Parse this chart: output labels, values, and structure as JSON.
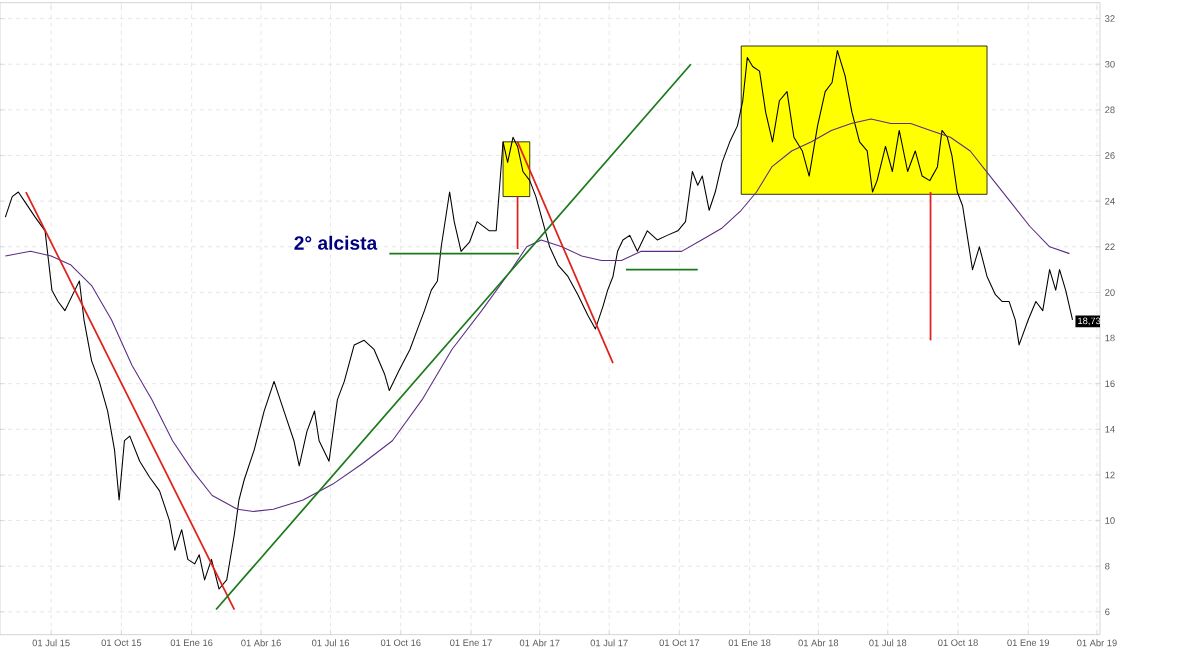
{
  "chart_data": {
    "type": "line",
    "xlim": [
      "2015-04-25",
      "2019-04-05"
    ],
    "ylim": [
      5.0,
      32.7
    ],
    "xticks": [
      {
        "value": "2015-07-01",
        "label": "01 Jul 15"
      },
      {
        "value": "2015-10-01",
        "label": "01 Oct 15"
      },
      {
        "value": "2016-01-01",
        "label": "01 Ene 16"
      },
      {
        "value": "2016-04-01",
        "label": "01 Abr 16"
      },
      {
        "value": "2016-07-01",
        "label": "01 Jul 16"
      },
      {
        "value": "2016-10-01",
        "label": "01 Oct 16"
      },
      {
        "value": "2017-01-01",
        "label": "01 Ene 17"
      },
      {
        "value": "2017-04-01",
        "label": "01 Abr 17"
      },
      {
        "value": "2017-07-01",
        "label": "01 Jul 17"
      },
      {
        "value": "2017-10-01",
        "label": "01 Oct 17"
      },
      {
        "value": "2018-01-01",
        "label": "01 Ene 18"
      },
      {
        "value": "2018-04-01",
        "label": "01 Abr 18"
      },
      {
        "value": "2018-07-01",
        "label": "01 Jul 18"
      },
      {
        "value": "2018-10-01",
        "label": "01 Oct 18"
      },
      {
        "value": "2019-01-01",
        "label": "01 Ene 19"
      },
      {
        "value": "2019-04-01",
        "label": "01 Abr 19"
      }
    ],
    "yticks": [
      6,
      8,
      10,
      12,
      14,
      16,
      18,
      20,
      22,
      24,
      26,
      28,
      30,
      32
    ],
    "grid": true,
    "annotations": [
      "2° alcista",
      {
        "text": "18,73",
        "x": "2019-02-28",
        "y": 18.73
      }
    ],
    "series": [
      {
        "type": "area",
        "color": "#ffff00",
        "x": [
          "2017-02-12",
          "2017-02-12",
          "2017-03-19",
          "2017-03-19"
        ],
        "values": [
          24.2,
          26.6,
          26.6,
          24.2
        ]
      },
      {
        "type": "area",
        "color": "#ffff00",
        "x": [
          "2017-12-21",
          "2017-12-21",
          "2018-11-08",
          "2018-11-08"
        ],
        "values": [
          24.3,
          30.8,
          30.8,
          24.3
        ]
      },
      {
        "color": "#000000",
        "x": [
          "2015-05-02",
          "2015-05-11",
          "2015-05-19",
          "2015-05-27",
          "2015-06-10",
          "2015-06-23",
          "2015-07-02",
          "2015-07-10",
          "2015-07-19",
          "2015-08-01",
          "2015-08-07",
          "2015-08-13",
          "2015-08-23",
          "2015-09-02",
          "2015-09-13",
          "2015-09-22",
          "2015-09-28",
          "2015-10-05",
          "2015-10-12",
          "2015-10-25",
          "2015-11-07",
          "2015-11-20",
          "2015-12-03",
          "2015-12-10",
          "2015-12-19",
          "2015-12-27",
          "2016-01-05",
          "2016-01-11",
          "2016-01-18",
          "2016-01-27",
          "2016-02-06",
          "2016-02-16",
          "2016-02-26",
          "2016-03-03",
          "2016-03-10",
          "2016-03-23",
          "2016-04-05",
          "2016-04-18",
          "2016-05-01",
          "2016-05-14",
          "2016-05-21",
          "2016-05-31",
          "2016-06-10",
          "2016-06-16",
          "2016-06-29",
          "2016-07-10",
          "2016-07-19",
          "2016-08-01",
          "2016-08-14",
          "2016-08-27",
          "2016-09-10",
          "2016-09-16",
          "2016-09-29",
          "2016-10-13",
          "2016-10-23",
          "2016-11-01",
          "2016-11-10",
          "2016-11-18",
          "2016-11-23",
          "2016-12-04",
          "2016-12-10",
          "2016-12-19",
          "2016-12-30",
          "2017-01-09",
          "2017-01-25",
          "2017-02-03",
          "2017-02-12",
          "2017-02-18",
          "2017-02-25",
          "2017-03-03",
          "2017-03-10",
          "2017-03-19",
          "2017-03-27",
          "2017-04-05",
          "2017-04-14",
          "2017-04-25",
          "2017-05-08",
          "2017-05-21",
          "2017-06-03",
          "2017-06-13",
          "2017-06-23",
          "2017-06-29",
          "2017-07-06",
          "2017-07-12",
          "2017-07-19",
          "2017-07-28",
          "2017-08-07",
          "2017-08-20",
          "2017-09-02",
          "2017-09-15",
          "2017-09-29",
          "2017-10-09",
          "2017-10-18",
          "2017-10-25",
          "2017-10-31",
          "2017-11-09",
          "2017-11-17",
          "2017-11-26",
          "2017-12-06",
          "2017-12-16",
          "2017-12-23",
          "2017-12-29",
          "2018-01-05",
          "2018-01-14",
          "2018-01-22",
          "2018-01-31",
          "2018-02-09",
          "2018-02-19",
          "2018-02-28",
          "2018-03-11",
          "2018-03-20",
          "2018-03-31",
          "2018-04-10",
          "2018-04-19",
          "2018-04-26",
          "2018-05-06",
          "2018-05-15",
          "2018-05-25",
          "2018-06-04",
          "2018-06-11",
          "2018-06-17",
          "2018-06-28",
          "2018-07-07",
          "2018-07-16",
          "2018-07-27",
          "2018-08-06",
          "2018-08-15",
          "2018-08-25",
          "2018-09-04",
          "2018-09-10",
          "2018-09-17",
          "2018-09-23",
          "2018-09-30",
          "2018-10-07",
          "2018-10-13",
          "2018-10-20",
          "2018-10-29",
          "2018-11-08",
          "2018-11-19",
          "2018-11-28",
          "2018-12-07",
          "2018-12-15",
          "2018-12-20",
          "2019-01-01",
          "2019-01-11",
          "2019-01-20",
          "2019-01-29",
          "2019-02-06",
          "2019-02-11",
          "2019-02-19",
          "2019-02-28"
        ],
        "values": [
          23.3,
          24.2,
          24.4,
          24.0,
          23.3,
          22.7,
          20.1,
          19.6,
          19.2,
          20.1,
          20.5,
          18.8,
          17.0,
          16.1,
          14.8,
          13.1,
          10.9,
          13.5,
          13.7,
          12.6,
          11.9,
          11.3,
          10.0,
          8.7,
          9.6,
          8.3,
          8.1,
          8.5,
          7.4,
          8.3,
          7.0,
          7.4,
          9.4,
          10.9,
          11.8,
          13.1,
          14.8,
          16.1,
          14.8,
          13.5,
          12.4,
          13.9,
          14.8,
          13.5,
          12.6,
          15.3,
          16.1,
          17.7,
          17.9,
          17.5,
          16.4,
          15.7,
          16.6,
          17.5,
          18.4,
          19.2,
          20.1,
          20.5,
          22.0,
          24.4,
          23.1,
          21.8,
          22.2,
          23.1,
          22.7,
          22.7,
          26.6,
          25.7,
          26.8,
          26.4,
          25.3,
          24.9,
          24.2,
          23.1,
          22.0,
          21.2,
          20.7,
          19.9,
          19.0,
          18.4,
          19.4,
          20.1,
          20.7,
          21.8,
          22.3,
          22.5,
          21.8,
          22.7,
          22.3,
          22.5,
          22.7,
          23.1,
          25.3,
          24.7,
          25.1,
          23.6,
          24.4,
          25.7,
          26.6,
          27.3,
          28.4,
          30.3,
          29.9,
          29.7,
          27.9,
          26.6,
          28.4,
          28.8,
          26.8,
          26.2,
          25.1,
          27.3,
          28.8,
          29.2,
          30.6,
          29.5,
          27.9,
          26.6,
          26.2,
          24.4,
          24.9,
          26.4,
          25.3,
          27.1,
          25.3,
          26.2,
          25.1,
          24.9,
          25.5,
          27.1,
          26.8,
          26.0,
          24.4,
          23.8,
          22.5,
          21.0,
          22.0,
          20.7,
          19.9,
          19.6,
          19.6,
          18.8,
          17.7,
          18.8,
          19.6,
          19.2,
          21.0,
          20.1,
          21.0,
          20.1,
          18.8
        ]
      },
      {
        "color": "#5b2c83",
        "x": [
          "2015-05-02",
          "2015-06-04",
          "2015-07-01",
          "2015-07-27",
          "2015-08-23",
          "2015-09-18",
          "2015-10-15",
          "2015-11-10",
          "2015-12-07",
          "2016-01-02",
          "2016-01-28",
          "2016-03-01",
          "2016-03-22",
          "2016-04-17",
          "2016-05-26",
          "2016-07-04",
          "2016-08-12",
          "2016-09-20",
          "2016-10-29",
          "2016-12-07",
          "2017-01-15",
          "2017-02-23",
          "2017-03-15",
          "2017-04-03",
          "2017-04-30",
          "2017-05-26",
          "2017-06-21",
          "2017-07-17",
          "2017-08-12",
          "2017-09-08",
          "2017-10-04",
          "2017-10-30",
          "2017-11-25",
          "2017-12-21",
          "2018-01-10",
          "2018-01-30",
          "2018-02-25",
          "2018-03-23",
          "2018-04-18",
          "2018-05-14",
          "2018-06-09",
          "2018-07-05",
          "2018-07-31",
          "2018-08-26",
          "2018-09-21",
          "2018-10-17",
          "2018-11-12",
          "2018-12-08",
          "2019-01-03",
          "2019-01-29",
          "2019-02-24"
        ],
        "values": [
          21.6,
          21.8,
          21.6,
          21.2,
          20.3,
          18.8,
          16.8,
          15.3,
          13.5,
          12.2,
          11.1,
          10.5,
          10.4,
          10.5,
          10.9,
          11.6,
          12.5,
          13.5,
          15.3,
          17.5,
          19.2,
          21.0,
          22.0,
          22.3,
          22.0,
          21.6,
          21.4,
          21.4,
          21.8,
          21.8,
          21.8,
          22.3,
          22.8,
          23.6,
          24.4,
          25.5,
          26.2,
          26.6,
          27.1,
          27.4,
          27.6,
          27.4,
          27.4,
          27.1,
          26.8,
          26.2,
          25.1,
          24.0,
          22.9,
          22.0,
          21.7
        ]
      },
      {
        "color": "#e0201b",
        "x": [
          "2015-05-29",
          "2016-02-26"
        ],
        "values": [
          24.4,
          6.1
        ]
      },
      {
        "color": "#1a7a1a",
        "x": [
          "2016-02-02",
          "2017-10-16"
        ],
        "values": [
          6.1,
          30.0
        ]
      },
      {
        "color": "#e0201b",
        "x": [
          "2017-03-03",
          "2017-07-06"
        ],
        "values": [
          26.6,
          16.9
        ]
      },
      {
        "color": "#1a7a1a",
        "x": [
          "2016-09-16",
          "2017-03-05"
        ],
        "values": [
          21.7,
          21.7
        ]
      },
      {
        "color": "#1a7a1a",
        "x": [
          "2017-07-23",
          "2017-10-25"
        ],
        "values": [
          21.0,
          21.0
        ]
      },
      {
        "color": "#e0201b",
        "x": [
          "2017-03-03",
          "2017-03-03"
        ],
        "values": [
          24.2,
          21.9
        ]
      },
      {
        "color": "#e0201b",
        "x": [
          "2018-08-26",
          "2018-08-26"
        ],
        "values": [
          24.4,
          17.9
        ]
      }
    ]
  }
}
